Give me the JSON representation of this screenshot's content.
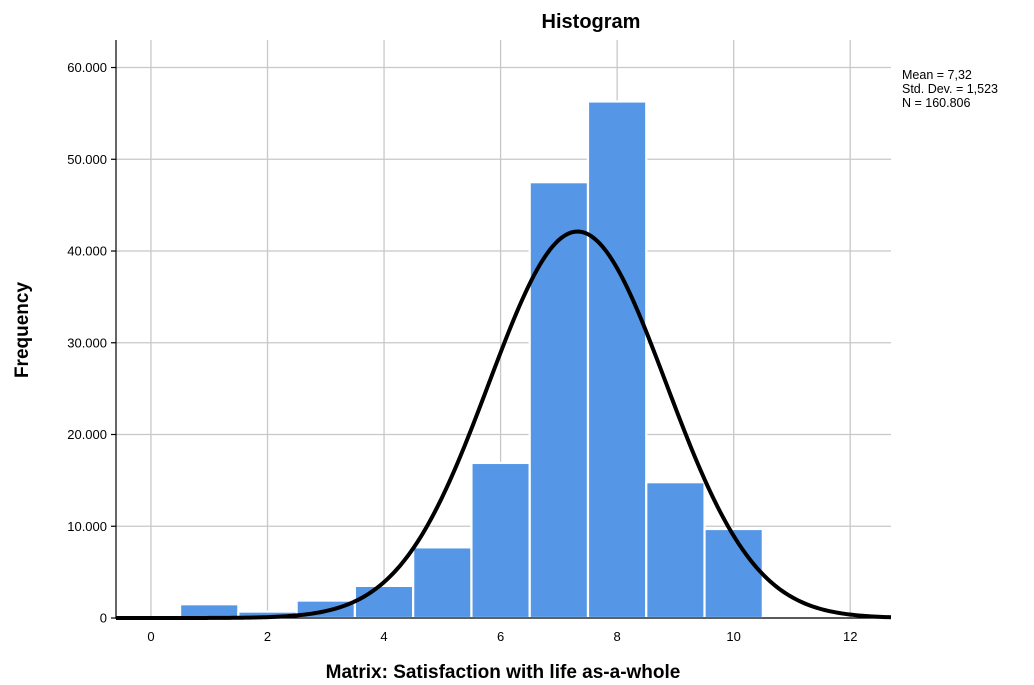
{
  "chart_data": {
    "type": "bar",
    "title": "Histogram",
    "xlabel": "Matrix: Satisfaction with life as-a-whole",
    "ylabel": "Frequency",
    "xlim": [
      -0.6,
      12.7
    ],
    "ylim": [
      0,
      63000
    ],
    "x_ticks": [
      0,
      2,
      4,
      6,
      8,
      10,
      12
    ],
    "y_ticks": [
      0,
      10000,
      20000,
      30000,
      40000,
      50000,
      60000
    ],
    "y_tick_labels": [
      "0",
      "10.000",
      "20.000",
      "30.000",
      "40.000",
      "50.000",
      "60.000"
    ],
    "bin_width": 1,
    "bins": [
      {
        "center": 1,
        "value": 1500
      },
      {
        "center": 2,
        "value": 700
      },
      {
        "center": 3,
        "value": 1900
      },
      {
        "center": 4,
        "value": 3500
      },
      {
        "center": 5,
        "value": 7700
      },
      {
        "center": 6,
        "value": 16900
      },
      {
        "center": 7,
        "value": 47500
      },
      {
        "center": 8,
        "value": 56300
      },
      {
        "center": 9,
        "value": 14800
      },
      {
        "center": 10,
        "value": 9700
      }
    ],
    "normal_curve": {
      "mean": 7.32,
      "std": 1.523,
      "n": 160806
    },
    "stats_lines": [
      "Mean = 7,32",
      "Std. Dev. = 1,523",
      "N = 160.806"
    ],
    "grid": true,
    "bar_color": "#5596e6",
    "curve_color": "#000000"
  }
}
